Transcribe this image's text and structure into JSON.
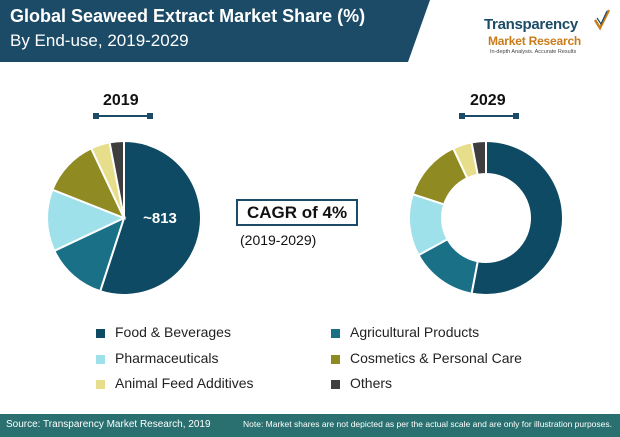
{
  "header": {
    "title": "Global Seaweed Extract Market Share (%)",
    "subtitle": "By End-use, 2019-2029"
  },
  "logo": {
    "name": "Transparency",
    "tagline": "Market Research",
    "motto": "In-depth Analysis. Accurate Results",
    "colors": {
      "primary": "#1b4b66",
      "accent": "#c97b1a"
    }
  },
  "chart_data": [
    {
      "type": "pie",
      "title": "2019",
      "center_label": "~813",
      "categories": [
        "Food & Beverages",
        "Agricultural Products",
        "Pharmaceuticals",
        "Cosmetics & Personal Care",
        "Animal Feed Additives",
        "Others"
      ],
      "values": [
        55,
        13,
        13,
        12,
        4,
        3
      ]
    },
    {
      "type": "pie",
      "title": "2029",
      "style": "donut",
      "categories": [
        "Food & Beverages",
        "Agricultural Products",
        "Pharmaceuticals",
        "Cosmetics & Personal Care",
        "Animal Feed Additives",
        "Others"
      ],
      "values": [
        53,
        14,
        13,
        13,
        4,
        3
      ]
    }
  ],
  "cagr": {
    "label": "CAGR of 4%",
    "period": "(2019-2029)"
  },
  "legend": [
    {
      "label": "Food & Beverages",
      "color": "#0e4a63"
    },
    {
      "label": "Agricultural Products",
      "color": "#1a7187"
    },
    {
      "label": "Pharmaceuticals",
      "color": "#9ee1ea"
    },
    {
      "label": "Cosmetics & Personal Care",
      "color": "#8f8a22"
    },
    {
      "label": "Animal Feed Additives",
      "color": "#e6de8a"
    },
    {
      "label": "Others",
      "color": "#3e3e3e"
    }
  ],
  "footer": {
    "source": "Source: Transparency Market Research, 2019",
    "note": "Note: Market shares are not depicted as per the actual scale and are only for illustration purposes."
  },
  "colors": {
    "title_band": "#1b4b66",
    "footer_band": "#2a7070"
  }
}
